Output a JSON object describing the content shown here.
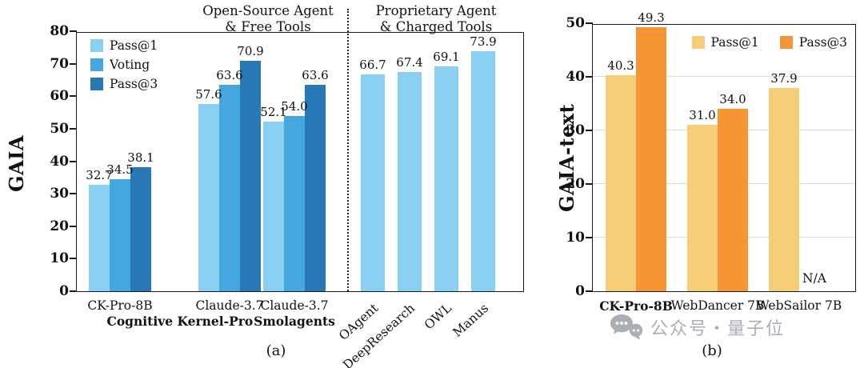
{
  "watermark": {
    "text": "公众号・量子位",
    "icon": "wechat-chat-bubbles-icon"
  },
  "chart_data": [
    {
      "type": "bar",
      "id": "a",
      "caption": "(a)",
      "ylabel": "GAIA",
      "ylim": [
        0,
        80
      ],
      "yticks": [
        0,
        10,
        20,
        30,
        40,
        50,
        60,
        70,
        80
      ],
      "section_titles": [
        "Open-Source Agent\n& Free Tools",
        "Proprietary Agent\n& Charged Tools"
      ],
      "legend": [
        {
          "label": "Pass@1",
          "color": "#8AD0F2"
        },
        {
          "label": "Voting",
          "color": "#46A7DE"
        },
        {
          "label": "Pass@3",
          "color": "#2878B6"
        }
      ],
      "groups": [
        {
          "label": "CK-Pro-8B",
          "values": [
            32.7,
            34.5,
            38.1
          ]
        },
        {
          "label": "Claude-3.7",
          "values": [
            57.6,
            63.6,
            70.9
          ]
        },
        {
          "label": "Claude-3.7",
          "values": [
            52.1,
            54.0,
            63.6
          ]
        }
      ],
      "group_sublabels": [
        {
          "text": "Cognitive Kernel-Pro",
          "between": [
            0,
            1
          ]
        },
        {
          "text": "Smolagents",
          "between": [
            2,
            2
          ]
        }
      ],
      "singles": [
        {
          "label": "OAgent",
          "value": 66.7
        },
        {
          "label": "DeepResearch",
          "value": 67.4
        },
        {
          "label": "OWL",
          "value": 69.1
        },
        {
          "label": "Manus",
          "value": 73.9
        }
      ],
      "divider": "dotted",
      "grid": false
    },
    {
      "type": "bar",
      "id": "b",
      "caption": "(b)",
      "ylabel": "GAIA-text",
      "ylim": [
        0,
        50
      ],
      "yticks": [
        0,
        10,
        20,
        30,
        40,
        50
      ],
      "grid": true,
      "legend": [
        {
          "label": "Pass@1",
          "color": "#F6CE77"
        },
        {
          "label": "Pass@3",
          "color": "#F79433"
        }
      ],
      "groups": [
        {
          "label": "CK-Pro-8B",
          "bold": true,
          "values": [
            40.3,
            49.3
          ]
        },
        {
          "label": "WebDancer 7B",
          "values": [
            31.0,
            34.0
          ]
        },
        {
          "label": "WebSailor 7B",
          "values": [
            37.9,
            null
          ]
        }
      ],
      "na_text": "N/A"
    }
  ]
}
